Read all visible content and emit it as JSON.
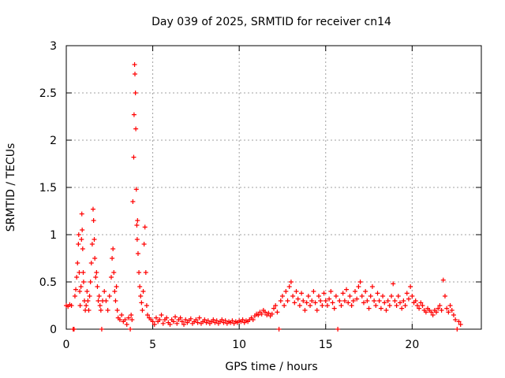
{
  "chart_data": {
    "type": "scatter",
    "title": "Day 039 of 2025, SRMTID for receiver cn14",
    "xlabel": "GPS time / hours",
    "ylabel": "SRMTID / TECUs",
    "xlim": [
      0,
      24
    ],
    "ylim": [
      0,
      3
    ],
    "xticks": [
      0,
      5,
      10,
      15,
      20
    ],
    "yticks": [
      0,
      0.5,
      1,
      1.5,
      2,
      2.5,
      3
    ],
    "ytick_labels": [
      "0",
      "0.5",
      "1",
      "1.5",
      "2",
      "2.5",
      "3"
    ],
    "grid": true,
    "marker": "+",
    "marker_color": "#ff0000",
    "series": [
      {
        "name": "SRMTID",
        "points": [
          [
            0.0,
            0.25
          ],
          [
            0.1,
            0.24
          ],
          [
            0.2,
            0.26
          ],
          [
            0.3,
            0.25
          ],
          [
            0.4,
            0.0
          ],
          [
            0.45,
            0.0
          ],
          [
            0.5,
            0.35
          ],
          [
            0.55,
            0.42
          ],
          [
            0.6,
            0.55
          ],
          [
            0.65,
            0.7
          ],
          [
            0.7,
            0.9
          ],
          [
            0.72,
            1.0
          ],
          [
            0.75,
            0.6
          ],
          [
            0.78,
            0.4
          ],
          [
            0.8,
            0.25
          ],
          [
            0.85,
            0.45
          ],
          [
            0.88,
            0.95
          ],
          [
            0.9,
            1.22
          ],
          [
            0.92,
            1.05
          ],
          [
            0.95,
            0.85
          ],
          [
            0.98,
            0.6
          ],
          [
            1.0,
            0.5
          ],
          [
            1.05,
            0.3
          ],
          [
            1.1,
            0.2
          ],
          [
            1.15,
            0.25
          ],
          [
            1.2,
            0.4
          ],
          [
            1.25,
            0.3
          ],
          [
            1.3,
            0.2
          ],
          [
            1.35,
            0.35
          ],
          [
            1.4,
            0.5
          ],
          [
            1.45,
            0.7
          ],
          [
            1.5,
            0.9
          ],
          [
            1.55,
            1.27
          ],
          [
            1.58,
            1.15
          ],
          [
            1.62,
            0.95
          ],
          [
            1.65,
            0.75
          ],
          [
            1.7,
            0.55
          ],
          [
            1.75,
            0.6
          ],
          [
            1.8,
            0.45
          ],
          [
            1.85,
            0.3
          ],
          [
            1.9,
            0.35
          ],
          [
            1.95,
            0.25
          ],
          [
            2.0,
            0.2
          ],
          [
            2.05,
            0.0
          ],
          [
            2.1,
            0.3
          ],
          [
            2.2,
            0.4
          ],
          [
            2.3,
            0.3
          ],
          [
            2.4,
            0.2
          ],
          [
            2.5,
            0.35
          ],
          [
            2.6,
            0.55
          ],
          [
            2.65,
            0.75
          ],
          [
            2.7,
            0.85
          ],
          [
            2.75,
            0.6
          ],
          [
            2.8,
            0.4
          ],
          [
            2.85,
            0.3
          ],
          [
            2.9,
            0.45
          ],
          [
            2.95,
            0.2
          ],
          [
            3.0,
            0.12
          ],
          [
            3.1,
            0.1
          ],
          [
            3.2,
            0.15
          ],
          [
            3.3,
            0.08
          ],
          [
            3.4,
            0.1
          ],
          [
            3.5,
            0.05
          ],
          [
            3.6,
            0.12
          ],
          [
            3.7,
            0.0
          ],
          [
            3.75,
            0.15
          ],
          [
            3.8,
            0.1
          ],
          [
            3.85,
            1.35
          ],
          [
            3.9,
            1.82
          ],
          [
            3.92,
            2.27
          ],
          [
            3.95,
            2.8
          ],
          [
            3.97,
            2.7
          ],
          [
            4.0,
            2.5
          ],
          [
            4.02,
            2.12
          ],
          [
            4.05,
            1.48
          ],
          [
            4.08,
            1.1
          ],
          [
            4.1,
            0.95
          ],
          [
            4.12,
            1.15
          ],
          [
            4.15,
            0.8
          ],
          [
            4.2,
            0.6
          ],
          [
            4.25,
            0.45
          ],
          [
            4.3,
            0.35
          ],
          [
            4.35,
            0.28
          ],
          [
            4.4,
            0.2
          ],
          [
            4.45,
            0.4
          ],
          [
            4.5,
            0.9
          ],
          [
            4.55,
            1.08
          ],
          [
            4.6,
            0.6
          ],
          [
            4.65,
            0.25
          ],
          [
            4.7,
            0.15
          ],
          [
            4.8,
            0.12
          ],
          [
            4.9,
            0.1
          ],
          [
            5.0,
            0.08
          ],
          [
            5.1,
            0.05
          ],
          [
            5.2,
            0.12
          ],
          [
            5.3,
            0.08
          ],
          [
            5.4,
            0.1
          ],
          [
            5.5,
            0.15
          ],
          [
            5.6,
            0.06
          ],
          [
            5.7,
            0.1
          ],
          [
            5.8,
            0.12
          ],
          [
            5.9,
            0.07
          ],
          [
            6.0,
            0.05
          ],
          [
            6.1,
            0.1
          ],
          [
            6.2,
            0.08
          ],
          [
            6.3,
            0.13
          ],
          [
            6.4,
            0.06
          ],
          [
            6.5,
            0.1
          ],
          [
            6.6,
            0.12
          ],
          [
            6.7,
            0.08
          ],
          [
            6.8,
            0.05
          ],
          [
            6.9,
            0.1
          ],
          [
            7.0,
            0.07
          ],
          [
            7.1,
            0.09
          ],
          [
            7.2,
            0.11
          ],
          [
            7.3,
            0.06
          ],
          [
            7.4,
            0.08
          ],
          [
            7.5,
            0.1
          ],
          [
            7.6,
            0.07
          ],
          [
            7.7,
            0.12
          ],
          [
            7.8,
            0.06
          ],
          [
            7.9,
            0.08
          ],
          [
            8.0,
            0.1
          ],
          [
            8.1,
            0.07
          ],
          [
            8.2,
            0.09
          ],
          [
            8.3,
            0.06
          ],
          [
            8.4,
            0.08
          ],
          [
            8.5,
            0.1
          ],
          [
            8.6,
            0.07
          ],
          [
            8.7,
            0.09
          ],
          [
            8.8,
            0.06
          ],
          [
            8.9,
            0.08
          ],
          [
            9.0,
            0.1
          ],
          [
            9.1,
            0.07
          ],
          [
            9.2,
            0.09
          ],
          [
            9.3,
            0.06
          ],
          [
            9.4,
            0.08
          ],
          [
            9.5,
            0.07
          ],
          [
            9.6,
            0.09
          ],
          [
            9.7,
            0.06
          ],
          [
            9.8,
            0.08
          ],
          [
            9.9,
            0.07
          ],
          [
            10.0,
            0.09
          ],
          [
            10.1,
            0.08
          ],
          [
            10.2,
            0.1
          ],
          [
            10.3,
            0.07
          ],
          [
            10.4,
            0.09
          ],
          [
            10.5,
            0.08
          ],
          [
            10.6,
            0.1
          ],
          [
            10.7,
            0.12
          ],
          [
            10.8,
            0.1
          ],
          [
            10.9,
            0.14
          ],
          [
            11.0,
            0.16
          ],
          [
            11.1,
            0.15
          ],
          [
            11.2,
            0.18
          ],
          [
            11.3,
            0.16
          ],
          [
            11.4,
            0.2
          ],
          [
            11.5,
            0.18
          ],
          [
            11.6,
            0.15
          ],
          [
            11.7,
            0.17
          ],
          [
            11.8,
            0.14
          ],
          [
            11.9,
            0.16
          ],
          [
            12.0,
            0.22
          ],
          [
            12.1,
            0.25
          ],
          [
            12.2,
            0.18
          ],
          [
            12.3,
            0.0
          ],
          [
            12.4,
            0.3
          ],
          [
            12.5,
            0.35
          ],
          [
            12.6,
            0.25
          ],
          [
            12.7,
            0.4
          ],
          [
            12.8,
            0.3
          ],
          [
            12.9,
            0.45
          ],
          [
            13.0,
            0.5
          ],
          [
            13.1,
            0.35
          ],
          [
            13.2,
            0.28
          ],
          [
            13.3,
            0.4
          ],
          [
            13.4,
            0.32
          ],
          [
            13.5,
            0.25
          ],
          [
            13.6,
            0.38
          ],
          [
            13.7,
            0.3
          ],
          [
            13.8,
            0.2
          ],
          [
            13.9,
            0.28
          ],
          [
            14.0,
            0.35
          ],
          [
            14.1,
            0.25
          ],
          [
            14.2,
            0.3
          ],
          [
            14.3,
            0.4
          ],
          [
            14.4,
            0.28
          ],
          [
            14.5,
            0.2
          ],
          [
            14.6,
            0.35
          ],
          [
            14.7,
            0.3
          ],
          [
            14.8,
            0.25
          ],
          [
            14.9,
            0.38
          ],
          [
            15.0,
            0.3
          ],
          [
            15.1,
            0.25
          ],
          [
            15.2,
            0.32
          ],
          [
            15.3,
            0.4
          ],
          [
            15.4,
            0.28
          ],
          [
            15.5,
            0.22
          ],
          [
            15.6,
            0.35
          ],
          [
            15.7,
            0.0
          ],
          [
            15.8,
            0.3
          ],
          [
            15.9,
            0.25
          ],
          [
            16.0,
            0.38
          ],
          [
            16.1,
            0.3
          ],
          [
            16.2,
            0.42
          ],
          [
            16.3,
            0.28
          ],
          [
            16.4,
            0.35
          ],
          [
            16.5,
            0.25
          ],
          [
            16.6,
            0.3
          ],
          [
            16.7,
            0.4
          ],
          [
            16.8,
            0.32
          ],
          [
            16.9,
            0.45
          ],
          [
            17.0,
            0.5
          ],
          [
            17.1,
            0.35
          ],
          [
            17.2,
            0.28
          ],
          [
            17.3,
            0.4
          ],
          [
            17.4,
            0.3
          ],
          [
            17.5,
            0.22
          ],
          [
            17.6,
            0.35
          ],
          [
            17.7,
            0.45
          ],
          [
            17.8,
            0.3
          ],
          [
            17.9,
            0.25
          ],
          [
            18.0,
            0.38
          ],
          [
            18.1,
            0.3
          ],
          [
            18.2,
            0.22
          ],
          [
            18.3,
            0.35
          ],
          [
            18.4,
            0.28
          ],
          [
            18.5,
            0.2
          ],
          [
            18.6,
            0.3
          ],
          [
            18.7,
            0.25
          ],
          [
            18.8,
            0.35
          ],
          [
            18.9,
            0.48
          ],
          [
            19.0,
            0.3
          ],
          [
            19.1,
            0.25
          ],
          [
            19.2,
            0.35
          ],
          [
            19.3,
            0.28
          ],
          [
            19.4,
            0.22
          ],
          [
            19.5,
            0.3
          ],
          [
            19.6,
            0.25
          ],
          [
            19.7,
            0.38
          ],
          [
            19.8,
            0.32
          ],
          [
            19.9,
            0.45
          ],
          [
            20.0,
            0.35
          ],
          [
            20.1,
            0.28
          ],
          [
            20.2,
            0.3
          ],
          [
            20.3,
            0.25
          ],
          [
            20.4,
            0.22
          ],
          [
            20.5,
            0.28
          ],
          [
            20.6,
            0.25
          ],
          [
            20.7,
            0.2
          ],
          [
            20.8,
            0.18
          ],
          [
            20.9,
            0.22
          ],
          [
            21.0,
            0.2
          ],
          [
            21.1,
            0.18
          ],
          [
            21.2,
            0.15
          ],
          [
            21.3,
            0.2
          ],
          [
            21.4,
            0.18
          ],
          [
            21.5,
            0.22
          ],
          [
            21.6,
            0.25
          ],
          [
            21.7,
            0.2
          ],
          [
            21.8,
            0.52
          ],
          [
            21.9,
            0.35
          ],
          [
            22.0,
            0.22
          ],
          [
            22.1,
            0.18
          ],
          [
            22.2,
            0.25
          ],
          [
            22.3,
            0.2
          ],
          [
            22.4,
            0.15
          ],
          [
            22.5,
            0.1
          ],
          [
            22.6,
            0.0
          ],
          [
            22.7,
            0.08
          ],
          [
            22.8,
            0.05
          ]
        ]
      }
    ]
  }
}
